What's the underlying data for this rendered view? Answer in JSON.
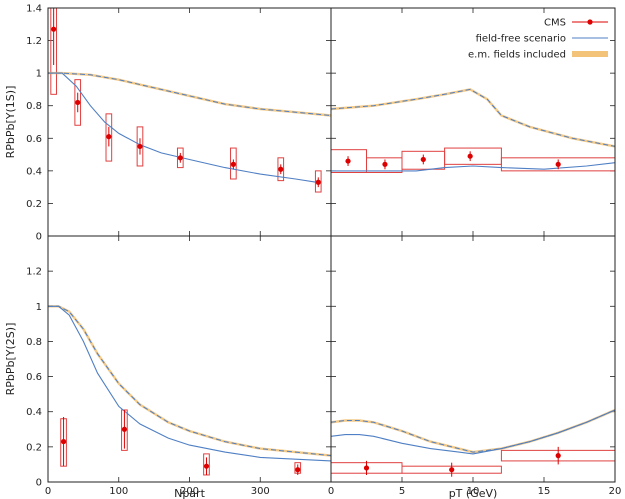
{
  "chart_data": {
    "type": "scatter",
    "legend": {
      "position": "top-right",
      "entries": [
        {
          "label": "CMS",
          "kind": "data",
          "color": "#dd0000"
        },
        {
          "label": "field-free scenario",
          "kind": "line",
          "color": "#4f7fc4"
        },
        {
          "label": "e.m. fields included",
          "kind": "band",
          "color": "#f0b860"
        }
      ]
    },
    "axes": {
      "left_x": {
        "label": "Npart",
        "ticks": [
          0,
          100,
          200,
          300
        ],
        "range": [
          0,
          400
        ]
      },
      "right_x": {
        "label": "pT  (GeV)",
        "ticks": [
          0,
          5,
          10,
          15,
          20
        ],
        "range": [
          0,
          20
        ]
      },
      "y": {
        "ticks": [
          "0",
          "0.2",
          "0.4",
          "0.6",
          "0.8",
          "1",
          "1.2",
          "1.4"
        ],
        "top_range": [
          0,
          1.4
        ],
        "bottom_range": [
          0,
          1.4
        ]
      },
      "top_ylabel": "RPbPb[Υ(1S)]",
      "bottom_ylabel": "RPbPb[Υ(2S)]"
    },
    "panels": [
      {
        "name": "top-left-1s-vs-npart",
        "solid": [
          [
            0,
            1.0
          ],
          [
            20,
            1.0
          ],
          [
            40,
            0.92
          ],
          [
            60,
            0.8
          ],
          [
            80,
            0.7
          ],
          [
            100,
            0.63
          ],
          [
            130,
            0.56
          ],
          [
            160,
            0.51
          ],
          [
            200,
            0.47
          ],
          [
            250,
            0.42
          ],
          [
            300,
            0.38
          ],
          [
            350,
            0.35
          ],
          [
            380,
            0.33
          ]
        ],
        "dashed": [
          [
            0,
            1.0
          ],
          [
            20,
            1.0
          ],
          [
            60,
            0.99
          ],
          [
            100,
            0.96
          ],
          [
            150,
            0.91
          ],
          [
            200,
            0.86
          ],
          [
            250,
            0.81
          ],
          [
            300,
            0.78
          ],
          [
            350,
            0.76
          ],
          [
            400,
            0.74
          ]
        ],
        "points": [
          {
            "x": 8,
            "y": 1.27,
            "err": 0.22,
            "box": [
              4,
              12,
              0.87,
              1.45
            ]
          },
          {
            "x": 42,
            "y": 0.82,
            "err": 0.06,
            "box": [
              38,
              46,
              0.68,
              0.96
            ]
          },
          {
            "x": 86,
            "y": 0.61,
            "err": 0.06,
            "box": [
              82,
              90,
              0.46,
              0.75
            ]
          },
          {
            "x": 130,
            "y": 0.55,
            "err": 0.05,
            "box": [
              126,
              134,
              0.43,
              0.67
            ]
          },
          {
            "x": 187,
            "y": 0.48,
            "err": 0.03,
            "box": [
              183,
              191,
              0.42,
              0.54
            ]
          },
          {
            "x": 262,
            "y": 0.44,
            "err": 0.03,
            "box": [
              258,
              266,
              0.35,
              0.54
            ]
          },
          {
            "x": 329,
            "y": 0.41,
            "err": 0.03,
            "box": [
              325,
              333,
              0.34,
              0.48
            ]
          },
          {
            "x": 382,
            "y": 0.33,
            "err": 0.03,
            "box": [
              378,
              386,
              0.27,
              0.4
            ]
          }
        ]
      },
      {
        "name": "top-right-1s-vs-pt",
        "solid": [
          [
            0,
            0.4
          ],
          [
            3,
            0.4
          ],
          [
            6,
            0.4
          ],
          [
            8,
            0.42
          ],
          [
            10,
            0.43
          ],
          [
            12,
            0.42
          ],
          [
            15,
            0.41
          ],
          [
            18,
            0.43
          ],
          [
            20,
            0.45
          ]
        ],
        "dashed": [
          [
            0,
            0.78
          ],
          [
            3,
            0.8
          ],
          [
            6,
            0.84
          ],
          [
            8,
            0.87
          ],
          [
            9.8,
            0.9
          ],
          [
            11,
            0.84
          ],
          [
            12,
            0.74
          ],
          [
            14,
            0.67
          ],
          [
            17,
            0.6
          ],
          [
            20,
            0.55
          ]
        ],
        "points": [
          {
            "x": 1.2,
            "y": 0.46,
            "err": 0.03,
            "box": [
              0,
              2.5,
              0.39,
              0.53
            ]
          },
          {
            "x": 3.8,
            "y": 0.44,
            "err": 0.03,
            "box": [
              2.5,
              5,
              0.39,
              0.48
            ]
          },
          {
            "x": 6.5,
            "y": 0.47,
            "err": 0.03,
            "box": [
              5,
              8,
              0.41,
              0.52
            ]
          },
          {
            "x": 9.8,
            "y": 0.49,
            "err": 0.03,
            "box": [
              8,
              12,
              0.44,
              0.54
            ]
          },
          {
            "x": 16,
            "y": 0.44,
            "err": 0.03,
            "box": [
              12,
              20,
              0.4,
              0.48
            ]
          }
        ]
      },
      {
        "name": "bottom-left-2s-vs-npart",
        "solid": [
          [
            0,
            1.0
          ],
          [
            15,
            1.0
          ],
          [
            30,
            0.95
          ],
          [
            50,
            0.8
          ],
          [
            70,
            0.62
          ],
          [
            100,
            0.43
          ],
          [
            130,
            0.33
          ],
          [
            170,
            0.25
          ],
          [
            200,
            0.21
          ],
          [
            250,
            0.17
          ],
          [
            300,
            0.14
          ],
          [
            350,
            0.13
          ],
          [
            400,
            0.12
          ]
        ],
        "dashed": [
          [
            0,
            1.0
          ],
          [
            15,
            1.0
          ],
          [
            30,
            0.97
          ],
          [
            50,
            0.87
          ],
          [
            70,
            0.73
          ],
          [
            100,
            0.56
          ],
          [
            130,
            0.44
          ],
          [
            170,
            0.34
          ],
          [
            200,
            0.29
          ],
          [
            250,
            0.23
          ],
          [
            300,
            0.19
          ],
          [
            350,
            0.17
          ],
          [
            400,
            0.15
          ]
        ],
        "points": [
          {
            "x": 22,
            "y": 0.23,
            "err": 0.14,
            "box": [
              18,
              26,
              0.09,
              0.36
            ]
          },
          {
            "x": 108,
            "y": 0.3,
            "err": 0.11,
            "box": [
              104,
              112,
              0.18,
              0.41
            ]
          },
          {
            "x": 224,
            "y": 0.09,
            "err": 0.05,
            "box": [
              220,
              228,
              0.04,
              0.16
            ]
          },
          {
            "x": 353,
            "y": 0.07,
            "err": 0.03,
            "box": [
              349,
              357,
              0.05,
              0.11
            ]
          }
        ]
      },
      {
        "name": "bottom-right-2s-vs-pt",
        "solid": [
          [
            0,
            0.26
          ],
          [
            1,
            0.27
          ],
          [
            2,
            0.27
          ],
          [
            3,
            0.26
          ],
          [
            5,
            0.22
          ],
          [
            7,
            0.19
          ],
          [
            9,
            0.17
          ],
          [
            10,
            0.16
          ],
          [
            12,
            0.19
          ],
          [
            14,
            0.23
          ],
          [
            16,
            0.28
          ],
          [
            18,
            0.34
          ],
          [
            20,
            0.41
          ]
        ],
        "dashed": [
          [
            0,
            0.34
          ],
          [
            1,
            0.35
          ],
          [
            2,
            0.35
          ],
          [
            3,
            0.34
          ],
          [
            5,
            0.29
          ],
          [
            7,
            0.23
          ],
          [
            9,
            0.19
          ],
          [
            10,
            0.17
          ],
          [
            12,
            0.19
          ],
          [
            14,
            0.23
          ],
          [
            16,
            0.28
          ],
          [
            18,
            0.34
          ],
          [
            20,
            0.41
          ]
        ],
        "points": [
          {
            "x": 2.5,
            "y": 0.08,
            "err": 0.04,
            "box": [
              0,
              5,
              0.05,
              0.11
            ]
          },
          {
            "x": 8.5,
            "y": 0.07,
            "err": 0.04,
            "box": [
              5,
              12,
              0.05,
              0.09
            ]
          },
          {
            "x": 16,
            "y": 0.15,
            "err": 0.05,
            "box": [
              12,
              20,
              0.12,
              0.18
            ]
          }
        ]
      }
    ]
  },
  "colors": {
    "data": "#dd0000",
    "box": "#e04040",
    "solid": "#4f7fc4",
    "dashed": "#4f7fc4",
    "band": "#f0b860",
    "frame": "#222222"
  }
}
